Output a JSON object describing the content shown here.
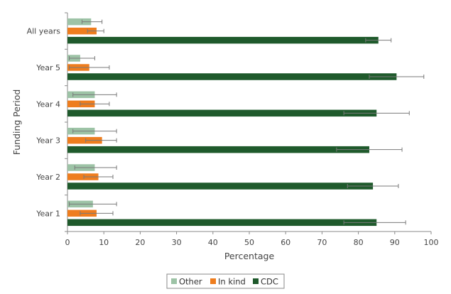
{
  "chart_data": {
    "type": "bar",
    "orientation": "horizontal",
    "categories": [
      "All years",
      "Year 5",
      "Year 4",
      "Year 3",
      "Year 2",
      "Year 1"
    ],
    "series": [
      {
        "name": "Other",
        "color": "#9dc3a6",
        "values": [
          6.5,
          3.5,
          7.5,
          7.5,
          7.5,
          7.0
        ],
        "error": [
          [
            4.0,
            9.5
          ],
          [
            0.5,
            7.5
          ],
          [
            1.5,
            13.5
          ],
          [
            1.5,
            13.5
          ],
          [
            2.0,
            13.5
          ],
          [
            0.5,
            13.5
          ]
        ]
      },
      {
        "name": "In kind",
        "color": "#ee7d1e",
        "values": [
          8.0,
          6.0,
          7.5,
          9.5,
          8.5,
          8.0
        ],
        "error": [
          [
            5.5,
            10.0
          ],
          [
            0.5,
            11.5
          ],
          [
            3.5,
            11.5
          ],
          [
            5.0,
            13.5
          ],
          [
            4.5,
            12.5
          ],
          [
            3.5,
            12.5
          ]
        ]
      },
      {
        "name": "CDC",
        "color": "#1f5a2c",
        "values": [
          85.5,
          90.5,
          85.0,
          83.0,
          84.0,
          85.0
        ],
        "error": [
          [
            82.0,
            89.0
          ],
          [
            83.0,
            98.0
          ],
          [
            76.0,
            94.0
          ],
          [
            74.0,
            92.0
          ],
          [
            77.0,
            91.0
          ],
          [
            76.0,
            93.0
          ]
        ]
      }
    ],
    "xlabel": "Percentage",
    "ylabel": "Funding Period",
    "xlim": [
      0,
      100
    ],
    "xticks": [
      0,
      10,
      20,
      30,
      40,
      50,
      60,
      70,
      80,
      90,
      100
    ],
    "grid": false,
    "legend_position": "bottom"
  }
}
